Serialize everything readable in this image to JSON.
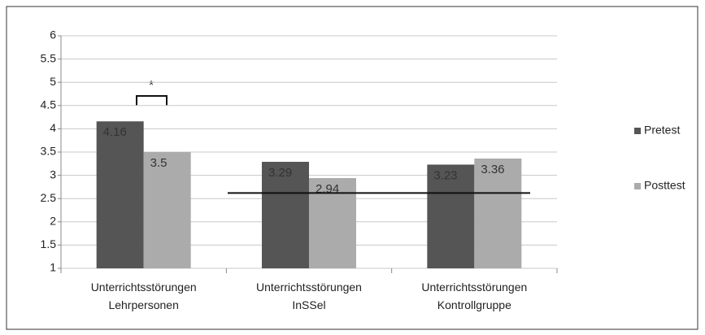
{
  "chart_data": {
    "type": "bar",
    "categories": [
      [
        "Unterrichtsstörungen",
        "Lehrpersonen"
      ],
      [
        "Unterrichtsstörungen",
        "InSSel"
      ],
      [
        "Unterrichtsstörungen",
        "Kontrollgruppe"
      ]
    ],
    "series": [
      {
        "name": "Pretest",
        "color": "#555555",
        "values": [
          4.16,
          3.29,
          3.23
        ]
      },
      {
        "name": "Posttest",
        "color": "#ababab",
        "values": [
          3.5,
          2.94,
          3.36
        ]
      }
    ],
    "ylim": [
      1,
      6
    ],
    "yticks": [
      1,
      1.5,
      2,
      2.5,
      3,
      3.5,
      4,
      4.5,
      5,
      5.5,
      6
    ],
    "grid": true,
    "legend": "right",
    "annotations": [
      "*"
    ],
    "reference_line": 2.62
  }
}
